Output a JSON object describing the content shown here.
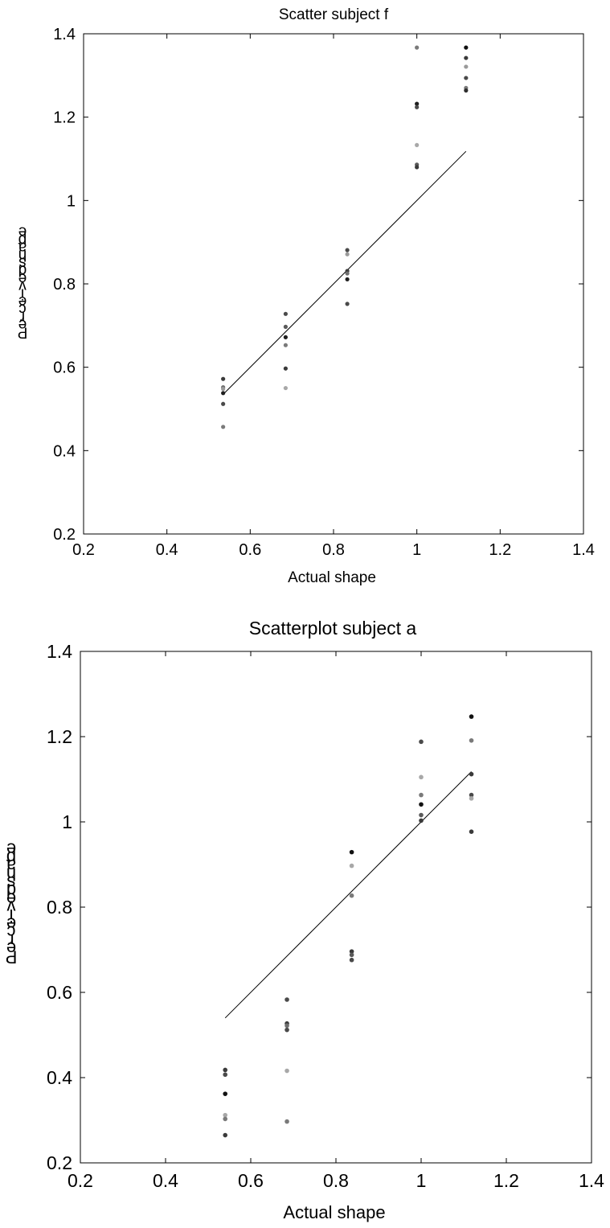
{
  "chart_data": [
    {
      "type": "scatter",
      "title": "Scatter subject f",
      "xlabel": "Actual shape",
      "ylabel": "Perceived shape",
      "xlim": [
        0.2,
        1.4
      ],
      "ylim": [
        0.2,
        1.4
      ],
      "xticks": [
        "0.2",
        "0.4",
        "0.6",
        "0.8",
        "1",
        "1.2",
        "1.4"
      ],
      "yticks": [
        "0.2",
        "0.4",
        "0.6",
        "0.8",
        "1",
        "1.2",
        "1.4"
      ],
      "grid": false,
      "reference_line": {
        "x": [
          0.535,
          1.118
        ],
        "y": [
          0.535,
          1.118
        ]
      },
      "points": [
        {
          "x": 0.535,
          "y": 0.572,
          "shade": "#3a3a3a"
        },
        {
          "x": 0.535,
          "y": 0.552,
          "shade": "#6e6e6e"
        },
        {
          "x": 0.535,
          "y": 0.548,
          "shade": "#9a9a9a"
        },
        {
          "x": 0.535,
          "y": 0.538,
          "shade": "#1e1e1e"
        },
        {
          "x": 0.535,
          "y": 0.512,
          "shade": "#4a4a4a"
        },
        {
          "x": 0.535,
          "y": 0.457,
          "shade": "#7a7a7a"
        },
        {
          "x": 0.685,
          "y": 0.728,
          "shade": "#4a4a4a"
        },
        {
          "x": 0.685,
          "y": 0.697,
          "shade": "#5a5a5a"
        },
        {
          "x": 0.685,
          "y": 0.672,
          "shade": "#1e1e1e"
        },
        {
          "x": 0.685,
          "y": 0.653,
          "shade": "#7a7a7a"
        },
        {
          "x": 0.685,
          "y": 0.597,
          "shade": "#3a3a3a"
        },
        {
          "x": 0.685,
          "y": 0.55,
          "shade": "#a8a8a8"
        },
        {
          "x": 0.833,
          "y": 0.881,
          "shade": "#4a4a4a"
        },
        {
          "x": 0.833,
          "y": 0.871,
          "shade": "#9a9a9a"
        },
        {
          "x": 0.833,
          "y": 0.831,
          "shade": "#3a3a3a"
        },
        {
          "x": 0.833,
          "y": 0.825,
          "shade": "#6e6e6e"
        },
        {
          "x": 0.833,
          "y": 0.811,
          "shade": "#1e1e1e"
        },
        {
          "x": 0.833,
          "y": 0.752,
          "shade": "#4a4a4a"
        },
        {
          "x": 1.0,
          "y": 1.367,
          "shade": "#7a7a7a"
        },
        {
          "x": 1.0,
          "y": 1.232,
          "shade": "#1e1e1e"
        },
        {
          "x": 1.0,
          "y": 1.224,
          "shade": "#4a4a4a"
        },
        {
          "x": 1.0,
          "y": 1.133,
          "shade": "#a8a8a8"
        },
        {
          "x": 1.0,
          "y": 1.086,
          "shade": "#5a5a5a"
        },
        {
          "x": 1.0,
          "y": 1.08,
          "shade": "#3a3a3a"
        },
        {
          "x": 1.118,
          "y": 1.367,
          "shade": "#111111"
        },
        {
          "x": 1.118,
          "y": 1.342,
          "shade": "#3a3a3a"
        },
        {
          "x": 1.118,
          "y": 1.321,
          "shade": "#9a9a9a"
        },
        {
          "x": 1.118,
          "y": 1.294,
          "shade": "#4a4a4a"
        },
        {
          "x": 1.118,
          "y": 1.27,
          "shade": "#7a7a7a"
        },
        {
          "x": 1.118,
          "y": 1.264,
          "shade": "#2e2e2e"
        }
      ]
    },
    {
      "type": "scatter",
      "title": "Scatterplot subject a",
      "xlabel": "Actual shape",
      "ylabel": "Perceived shape",
      "xlim": [
        0.2,
        1.4
      ],
      "ylim": [
        0.2,
        1.4
      ],
      "xticks": [
        "0.2",
        "0.4",
        "0.6",
        "0.8",
        "1",
        "1.2",
        "1.4"
      ],
      "yticks": [
        "0.2",
        "0.4",
        "0.6",
        "0.8",
        "1",
        "1.2",
        "1.4"
      ],
      "grid": false,
      "reference_line": {
        "x": [
          0.54,
          1.118
        ],
        "y": [
          0.54,
          1.118
        ]
      },
      "points": [
        {
          "x": 0.54,
          "y": 0.418,
          "shade": "#3a3a3a"
        },
        {
          "x": 0.54,
          "y": 0.407,
          "shade": "#4a4a4a"
        },
        {
          "x": 0.54,
          "y": 0.362,
          "shade": "#111111"
        },
        {
          "x": 0.54,
          "y": 0.312,
          "shade": "#a8a8a8"
        },
        {
          "x": 0.54,
          "y": 0.303,
          "shade": "#7a7a7a"
        },
        {
          "x": 0.54,
          "y": 0.265,
          "shade": "#3a3a3a"
        },
        {
          "x": 0.685,
          "y": 0.583,
          "shade": "#4a4a4a"
        },
        {
          "x": 0.685,
          "y": 0.527,
          "shade": "#3a3a3a"
        },
        {
          "x": 0.685,
          "y": 0.522,
          "shade": "#6e6e6e"
        },
        {
          "x": 0.685,
          "y": 0.512,
          "shade": "#4a4a4a"
        },
        {
          "x": 0.685,
          "y": 0.416,
          "shade": "#a8a8a8"
        },
        {
          "x": 0.685,
          "y": 0.297,
          "shade": "#7a7a7a"
        },
        {
          "x": 0.837,
          "y": 0.929,
          "shade": "#111111"
        },
        {
          "x": 0.837,
          "y": 0.897,
          "shade": "#a8a8a8"
        },
        {
          "x": 0.837,
          "y": 0.827,
          "shade": "#7a7a7a"
        },
        {
          "x": 0.837,
          "y": 0.696,
          "shade": "#3a3a3a"
        },
        {
          "x": 0.837,
          "y": 0.688,
          "shade": "#5a5a5a"
        },
        {
          "x": 0.837,
          "y": 0.676,
          "shade": "#4a4a4a"
        },
        {
          "x": 1.0,
          "y": 1.188,
          "shade": "#4a4a4a"
        },
        {
          "x": 1.0,
          "y": 1.105,
          "shade": "#a8a8a8"
        },
        {
          "x": 1.0,
          "y": 1.063,
          "shade": "#7a7a7a"
        },
        {
          "x": 1.0,
          "y": 1.041,
          "shade": "#111111"
        },
        {
          "x": 1.0,
          "y": 1.016,
          "shade": "#5a5a5a"
        },
        {
          "x": 1.0,
          "y": 1.003,
          "shade": "#3a3a3a"
        },
        {
          "x": 1.118,
          "y": 1.247,
          "shade": "#111111"
        },
        {
          "x": 1.118,
          "y": 1.191,
          "shade": "#7a7a7a"
        },
        {
          "x": 1.118,
          "y": 1.112,
          "shade": "#3a3a3a"
        },
        {
          "x": 1.118,
          "y": 1.063,
          "shade": "#4a4a4a"
        },
        {
          "x": 1.118,
          "y": 1.055,
          "shade": "#a8a8a8"
        },
        {
          "x": 1.118,
          "y": 0.977,
          "shade": "#3a3a3a"
        }
      ]
    }
  ]
}
